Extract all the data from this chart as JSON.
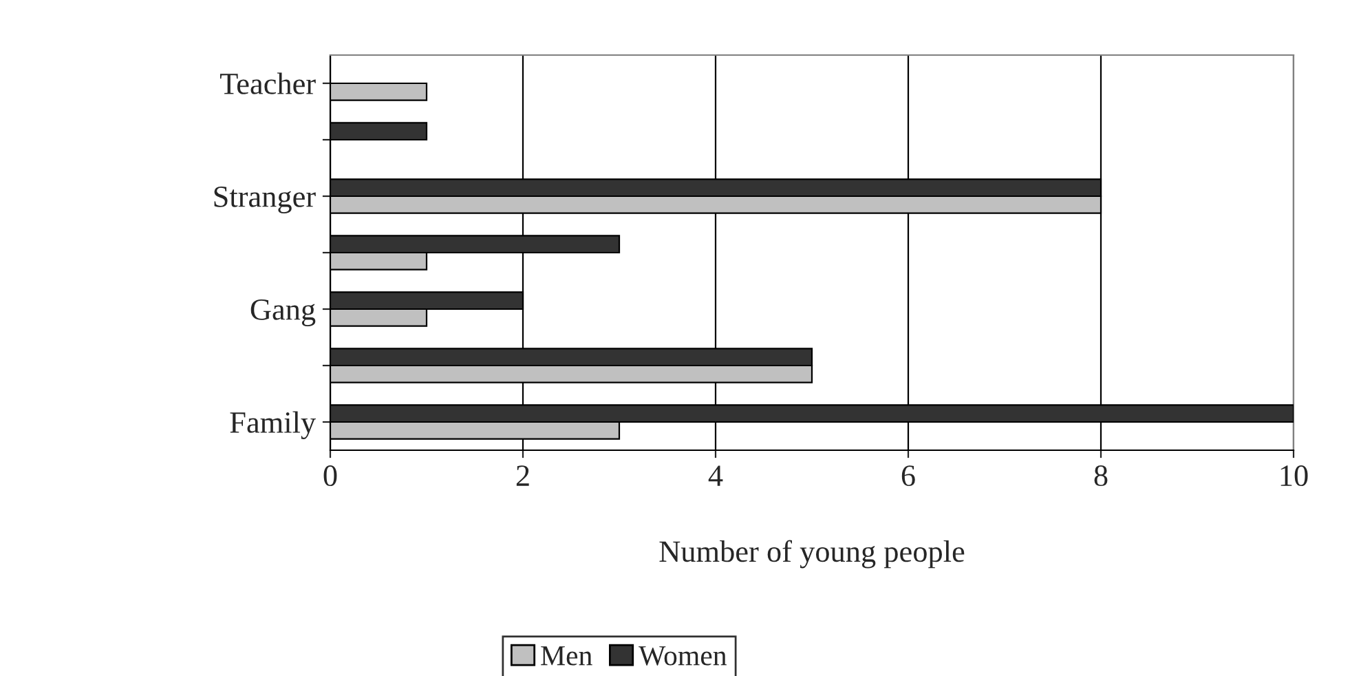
{
  "chart_data": {
    "type": "bar",
    "orientation": "horizontal",
    "categories": [
      "Teacher",
      null,
      "Stranger",
      null,
      "Gang",
      null,
      "Family"
    ],
    "series": [
      {
        "name": "Men",
        "color": "#c0c0c0",
        "values": [
          1,
          null,
          8,
          1,
          1,
          5,
          3
        ]
      },
      {
        "name": "Women",
        "color": "#333333",
        "values": [
          null,
          1,
          8,
          3,
          2,
          5,
          10
        ]
      }
    ],
    "xlabel": "Number of young people",
    "xlim": [
      0,
      10
    ],
    "xticks": [
      0,
      2,
      4,
      6,
      8,
      10
    ],
    "grid": "x",
    "legend": "bottom"
  }
}
